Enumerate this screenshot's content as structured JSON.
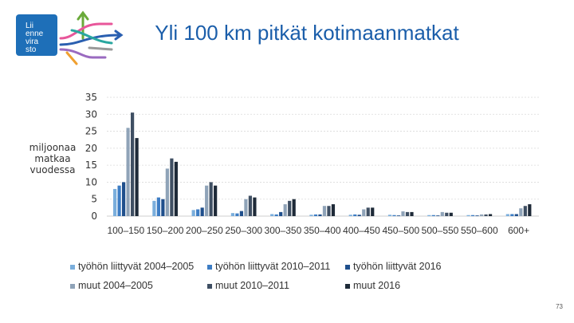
{
  "logo": {
    "lines": [
      "Lii",
      "enne",
      "vira",
      "sto"
    ],
    "bg_color": "#1e6fb8"
  },
  "chart_data": {
    "type": "bar",
    "title": "Yli 100 km pitkät kotimaanmatkat",
    "ylabel": "miljoonaa\nmatkaa\nvuodessa",
    "xlabel": "",
    "ylim": [
      0,
      35
    ],
    "yticks": [
      "35",
      "30",
      "25",
      "20",
      "15",
      "10",
      "5",
      "0"
    ],
    "grid": true,
    "legend_position": "bottom",
    "categories": [
      "100–150",
      "150–200",
      "200–250",
      "250–300",
      "300–350",
      "350–400",
      "400–450",
      "450–500",
      "500–550",
      "550–600",
      "600+"
    ],
    "category_labels": [
      "100–150",
      "150–200",
      "200–250",
      "250–300",
      "300–350",
      "350–400",
      "400–450",
      "450–500",
      "500–550",
      "550–600",
      "600+"
    ],
    "series": [
      {
        "name": "työhön liittyvät 2004–2005",
        "color": "#7aaedc",
        "values": [
          8,
          4.5,
          1.8,
          0.9,
          0.6,
          0.4,
          0.4,
          0.4,
          0.3,
          0.3,
          0.6
        ]
      },
      {
        "name": "työhön liittyvät 2010–2011",
        "color": "#3d7dc4",
        "values": [
          9,
          5.5,
          2,
          0.8,
          0.5,
          0.5,
          0.5,
          0.3,
          0.3,
          0.3,
          0.6
        ]
      },
      {
        "name": "työhön liittyvät 2016",
        "color": "#1f4f8c",
        "values": [
          10,
          5,
          2.5,
          1.5,
          1.2,
          0.5,
          0.4,
          0.2,
          0.2,
          0.2,
          0.6
        ]
      },
      {
        "name": "muut 2004–2005",
        "color": "#8fa3b8",
        "values": [
          26,
          14,
          9,
          5,
          3.5,
          3,
          2,
          1.4,
          1.2,
          0.5,
          2.3
        ]
      },
      {
        "name": "muut 2010–2011",
        "color": "#3f4f63",
        "values": [
          30.5,
          17,
          10,
          6,
          4.5,
          3,
          2.5,
          1.2,
          1,
          0.5,
          3
        ]
      },
      {
        "name": "muut 2016",
        "color": "#1e2a38",
        "values": [
          23,
          16,
          9,
          5.5,
          5,
          3.5,
          2.5,
          1.2,
          1,
          0.6,
          3.5
        ]
      }
    ]
  },
  "page_number": "73"
}
